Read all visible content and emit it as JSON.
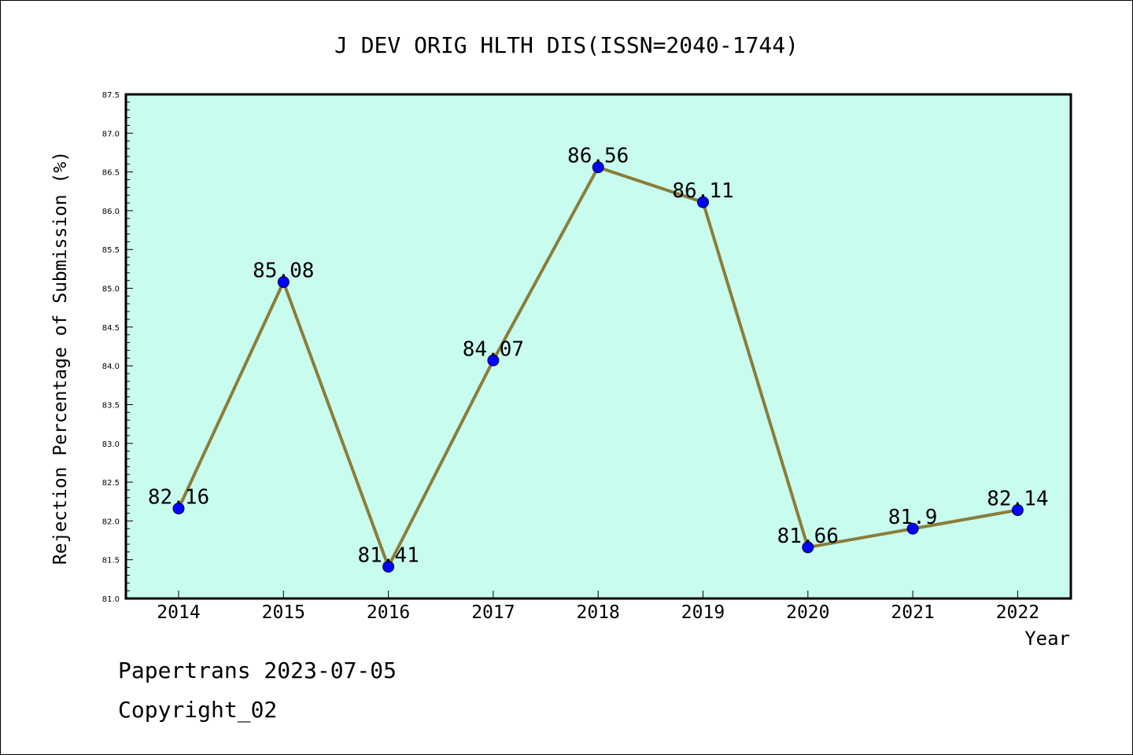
{
  "chart_data": {
    "type": "line",
    "title": "J DEV ORIG HLTH DIS(ISSN=2040-1744)",
    "xlabel": "Year",
    "ylabel": "Rejection Percentage of Submission (%)",
    "categories": [
      "2014",
      "2015",
      "2016",
      "2017",
      "2018",
      "2019",
      "2020",
      "2021",
      "2022"
    ],
    "series": [
      {
        "values": [
          82.16,
          85.08,
          81.41,
          84.07,
          86.56,
          86.11,
          81.66,
          81.9,
          82.14
        ],
        "data_labels": [
          "82.16",
          "85.08",
          "81.41",
          "84.07",
          "86.56",
          "86.11",
          "81.66",
          "81.9",
          "82.14"
        ]
      }
    ],
    "ylim": [
      81.0,
      87.5
    ],
    "yticks": [
      "81.0",
      "81.5",
      "82.0",
      "82.5",
      "83.0",
      "83.5",
      "84.0",
      "84.5",
      "85.0",
      "85.5",
      "86.0",
      "86.5",
      "87.0",
      "87.5"
    ],
    "grid": false,
    "legend": "none",
    "colors": {
      "plot_background": "#c8fcee",
      "line": "#8b7d3a",
      "marker": "#0000ff"
    }
  },
  "footer": {
    "line1": "Papertrans 2023-07-05",
    "line2": "Copyright_02"
  }
}
